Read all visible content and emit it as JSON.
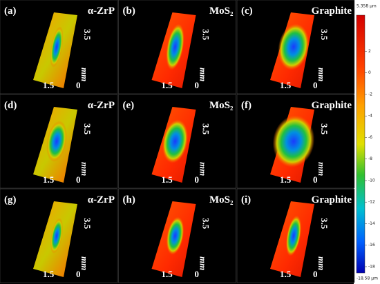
{
  "panels": [
    {
      "label": "(a)",
      "material": "α-ZrP"
    },
    {
      "label": "(b)",
      "material": "MoS₂"
    },
    {
      "label": "(c)",
      "material": "Graphite"
    },
    {
      "label": "(d)",
      "material": "α-ZrP"
    },
    {
      "label": "(e)",
      "material": "MoS₂"
    },
    {
      "label": "(f)",
      "material": "Graphite"
    },
    {
      "label": "(g)",
      "material": "α-ZrP"
    },
    {
      "label": "(h)",
      "material": "MoS₂"
    },
    {
      "label": "(i)",
      "material": "Graphite"
    }
  ],
  "axes": {
    "length": "3.5",
    "unit": "mm",
    "width": "1.5",
    "origin": "0"
  },
  "colorbar": {
    "max_label": "5.358 μm",
    "min_label": "-18.58 μm",
    "range": [
      -18.58,
      5.358
    ],
    "ticks": [
      2,
      0,
      -2,
      -4,
      -6,
      -8,
      -10,
      -12,
      -14,
      -16,
      -18
    ]
  }
}
